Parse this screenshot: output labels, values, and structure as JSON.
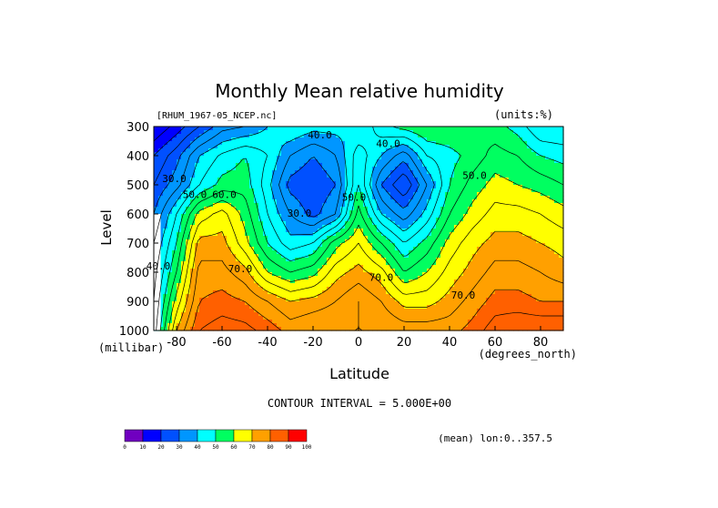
{
  "chart_data": {
    "type": "heatmap",
    "title": "Monthly Mean relative humidity",
    "dataset_label": "[RHUM_1967-05_NCEP.nc]",
    "units_label": "(units:%)",
    "ylabel": "Level",
    "ylabel_units": "(millibar)",
    "xlabel": "Latitude",
    "xlabel_units": "(degrees_north)",
    "contour_interval_text": "CONTOUR INTERVAL = 5.000E+00",
    "mean_label": "(mean) lon:0..357.5",
    "xlim": [
      -90,
      90
    ],
    "ylim": [
      300,
      1000
    ],
    "x_ticks": [
      {
        "value": -80,
        "label": "-80"
      },
      {
        "value": -60,
        "label": "-60"
      },
      {
        "value": -40,
        "label": "-40"
      },
      {
        "value": -20,
        "label": "-20"
      },
      {
        "value": 0,
        "label": "0"
      },
      {
        "value": 20,
        "label": "20"
      },
      {
        "value": 40,
        "label": "40"
      },
      {
        "value": 60,
        "label": "60"
      },
      {
        "value": 80,
        "label": "80"
      }
    ],
    "y_ticks": [
      {
        "value": 300,
        "label": "300"
      },
      {
        "value": 400,
        "label": "400"
      },
      {
        "value": 500,
        "label": "500"
      },
      {
        "value": 600,
        "label": "600"
      },
      {
        "value": 700,
        "label": "700"
      },
      {
        "value": 800,
        "label": "800"
      },
      {
        "value": 900,
        "label": "900"
      },
      {
        "value": 1000,
        "label": "1000"
      }
    ],
    "x": [
      -90,
      -80,
      -70,
      -60,
      -50,
      -40,
      -30,
      -20,
      -10,
      0,
      10,
      20,
      30,
      40,
      50,
      60,
      70,
      80,
      90
    ],
    "levels": [
      300,
      400,
      500,
      600,
      700,
      800,
      900,
      1000
    ],
    "values": [
      [
        10,
        17,
        25,
        33,
        35,
        40,
        45,
        42,
        42,
        40,
        48,
        52,
        55,
        55,
        55,
        52,
        48,
        40,
        40
      ],
      [
        20,
        28,
        40,
        46,
        50,
        45,
        35,
        30,
        35,
        48,
        40,
        32,
        45,
        48,
        52,
        57,
        55,
        50,
        48
      ],
      [
        25,
        33,
        45,
        52,
        53,
        42,
        28,
        25,
        30,
        50,
        30,
        20,
        35,
        50,
        57,
        62,
        60,
        58,
        55
      ],
      [
        30,
        45,
        62,
        67,
        58,
        45,
        35,
        28,
        35,
        57,
        40,
        32,
        42,
        55,
        62,
        67,
        67,
        65,
        62
      ],
      [
        35,
        50,
        72,
        72,
        62,
        50,
        42,
        45,
        58,
        65,
        55,
        45,
        52,
        62,
        68,
        72,
        72,
        70,
        68
      ],
      [
        38,
        55,
        77,
        77,
        72,
        60,
        55,
        58,
        68,
        72,
        67,
        55,
        60,
        67,
        72,
        77,
        77,
        75,
        72
      ],
      [
        40,
        62,
        80,
        82,
        80,
        75,
        70,
        72,
        75,
        80,
        75,
        68,
        68,
        72,
        77,
        82,
        82,
        80,
        80
      ],
      [
        42,
        70,
        85,
        88,
        87,
        83,
        78,
        80,
        80,
        80,
        80,
        78,
        78,
        78,
        82,
        88,
        90,
        90,
        90
      ]
    ],
    "contour_labels": [
      {
        "text": "40.0",
        "x": -17,
        "y": 340
      },
      {
        "text": "40.0",
        "x": 13,
        "y": 370
      },
      {
        "text": "30.0",
        "x": -81,
        "y": 490
      },
      {
        "text": "50.0",
        "x": -72,
        "y": 545
      },
      {
        "text": "60.0",
        "x": -59,
        "y": 545
      },
      {
        "text": "50.0",
        "x": 51,
        "y": 480
      },
      {
        "text": "50.0",
        "x": -2,
        "y": 555
      },
      {
        "text": "30.0",
        "x": -26,
        "y": 610
      },
      {
        "text": "40.0",
        "x": -88,
        "y": 790
      },
      {
        "text": "70.0",
        "x": -52,
        "y": 800
      },
      {
        "text": "70.0",
        "x": 10,
        "y": 830
      },
      {
        "text": "70.0",
        "x": 46,
        "y": 890
      }
    ],
    "colorbar": {
      "ticks": [
        "0",
        "10",
        "20",
        "30",
        "40",
        "50",
        "60",
        "70",
        "80",
        "90",
        "100"
      ],
      "colors": [
        "#7000c0",
        "#0000ff",
        "#0050ff",
        "#0096ff",
        "#00ffff",
        "#00ff60",
        "#ffff00",
        "#ffa000",
        "#ff6000",
        "#ff0000"
      ]
    },
    "missing_color": "#ffffff"
  }
}
